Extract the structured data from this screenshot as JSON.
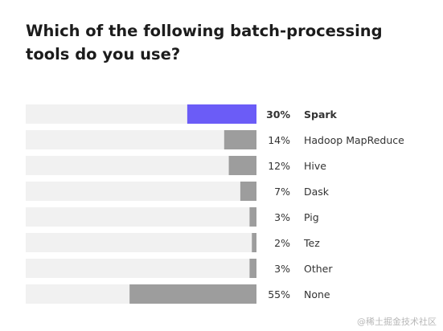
{
  "title": "Which of the following batch-processing tools do you use?",
  "watermark": "@稀土掘金技术社区",
  "colors": {
    "track": "#f1f1f1",
    "bar": "#9d9d9d",
    "highlight": "#6b5cf7",
    "text": "#333333"
  },
  "chart_data": {
    "type": "bar",
    "orientation": "horizontal",
    "bar_alignment": "right",
    "value_unit": "%",
    "xlim": [
      0,
      100
    ],
    "categories": [
      "Spark",
      "Hadoop MapReduce",
      "Hive",
      "Dask",
      "Pig",
      "Tez",
      "Other",
      "None"
    ],
    "values": [
      30,
      14,
      12,
      7,
      3,
      2,
      3,
      55
    ],
    "value_labels": [
      "30%",
      "14%",
      "12%",
      "7%",
      "3%",
      "2%",
      "3%",
      "55%"
    ],
    "highlighted": "Spark",
    "title": "Which of the following batch-processing tools do you use?",
    "xlabel": "",
    "ylabel": "",
    "grid": false,
    "legend": "none"
  }
}
